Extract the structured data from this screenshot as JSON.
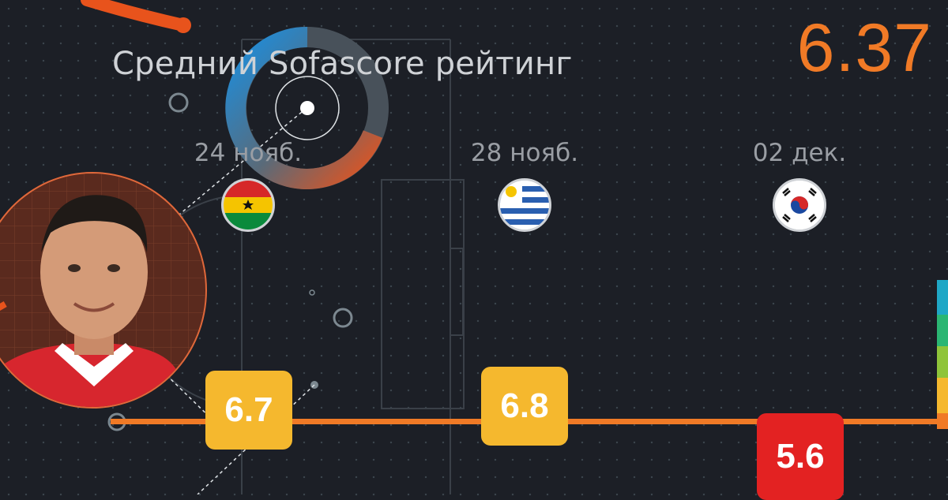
{
  "header": {
    "title": "Средний Sofascore рейтинг",
    "average_rating": "6.37"
  },
  "matches": [
    {
      "date": "24 нояб.",
      "opponent_flag": "ghana-flag-icon",
      "rating": "6.7",
      "rating_color": "#f5b82e"
    },
    {
      "date": "28 нояб.",
      "opponent_flag": "uruguay-flag-icon",
      "rating": "6.8",
      "rating_color": "#f5b82e"
    },
    {
      "date": "02 дек.",
      "opponent_flag": "south-korea-flag-icon",
      "rating": "5.6",
      "rating_color": "#e32222"
    }
  ],
  "colors": {
    "accent": "#f07a26",
    "background": "#1c1f26",
    "rating_good": "#f5b82e",
    "rating_bad": "#e32222"
  },
  "player": {
    "icon": "player-avatar-icon"
  }
}
